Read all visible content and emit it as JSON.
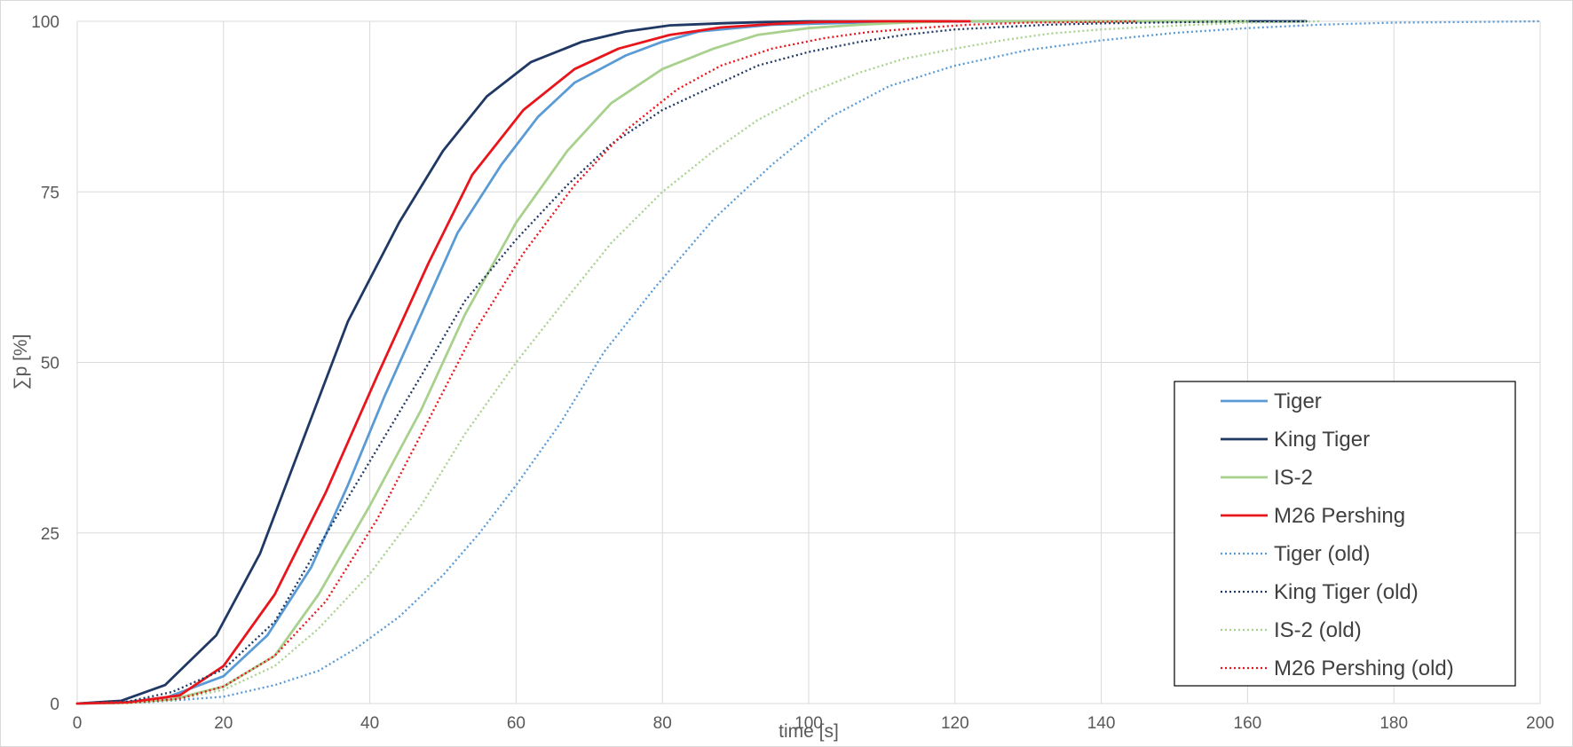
{
  "chart_data": {
    "type": "line",
    "title": "",
    "xlabel": "time [s]",
    "ylabel": "∑p [%]",
    "xlim": [
      0,
      200
    ],
    "ylim": [
      0,
      100
    ],
    "x_ticks": [
      0,
      20,
      40,
      60,
      80,
      100,
      120,
      140,
      160,
      180,
      200
    ],
    "y_ticks": [
      0,
      25,
      50,
      75,
      100
    ],
    "grid": true,
    "legend_position": "bottom-right",
    "series": [
      {
        "name": "Tiger",
        "color": "#5b9bd5",
        "style": "solid",
        "x": [
          0,
          6,
          12,
          15,
          20,
          26,
          32,
          37,
          42,
          47,
          52,
          58,
          63,
          68,
          75,
          80,
          85,
          95,
          110,
          125,
          140,
          150
        ],
        "y": [
          0,
          0.1,
          0.8,
          2,
          4,
          10,
          20,
          32,
          45,
          57,
          69,
          79,
          86,
          91,
          95,
          97,
          98.5,
          99.5,
          99.9,
          100,
          100,
          100
        ]
      },
      {
        "name": "King Tiger",
        "color": "#1f3864",
        "style": "solid",
        "x": [
          0,
          6,
          12,
          19,
          25,
          31,
          37,
          44,
          50,
          56,
          62,
          69,
          75,
          81,
          88,
          94,
          100,
          110,
          125,
          140,
          160,
          168
        ],
        "y": [
          0,
          0.4,
          2.7,
          10,
          22,
          39,
          56,
          70.5,
          81,
          89,
          94,
          97,
          98.5,
          99.4,
          99.7,
          99.9,
          100,
          100,
          100,
          100,
          100,
          100
        ]
      },
      {
        "name": "IS-2",
        "color": "#a9d18e",
        "style": "solid",
        "x": [
          0,
          7,
          13,
          20,
          27,
          33,
          40,
          47,
          53,
          60,
          67,
          73,
          80,
          87,
          93,
          100,
          107,
          113,
          120,
          130,
          140,
          160
        ],
        "y": [
          0,
          0.1,
          0.6,
          2.5,
          7,
          16,
          29,
          43,
          57,
          70.5,
          81,
          88,
          93,
          96,
          98,
          99,
          99.5,
          99.8,
          100,
          100,
          100,
          100
        ]
      },
      {
        "name": "M26 Pershing",
        "color": "#e8161c",
        "style": "solid",
        "x": [
          0,
          7,
          14,
          20,
          27,
          34,
          41,
          48,
          54,
          61,
          68,
          74,
          81,
          88,
          95,
          101,
          110,
          122
        ],
        "y": [
          0,
          0.2,
          1.2,
          5.5,
          16,
          31,
          48,
          64.5,
          77.5,
          87,
          93,
          96,
          98,
          99.1,
          99.6,
          99.9,
          100,
          100
        ]
      },
      {
        "name": "Tiger (old)",
        "color": "#5b9bd5",
        "style": "dotted",
        "x": [
          0,
          10,
          20,
          27,
          33,
          38,
          44,
          50,
          55,
          60,
          66,
          72,
          79,
          87,
          95,
          103,
          111,
          120,
          130,
          140,
          150,
          160,
          170,
          180,
          190,
          200
        ],
        "y": [
          0,
          0.2,
          1,
          2.7,
          4.8,
          8,
          12.7,
          18.8,
          25,
          32,
          41,
          51.5,
          61,
          71,
          79,
          86,
          90.5,
          93.5,
          95.8,
          97.2,
          98.3,
          99,
          99.5,
          99.8,
          99.9,
          100
        ]
      },
      {
        "name": "King Tiger (old)",
        "color": "#1f3864",
        "style": "dotted",
        "x": [
          0,
          7,
          13,
          20,
          27,
          33,
          40,
          47,
          53,
          60,
          67,
          73,
          80,
          87,
          93,
          100,
          107,
          113,
          120,
          127,
          133,
          140,
          147,
          153,
          160
        ],
        "y": [
          0,
          0.3,
          1.7,
          5,
          12,
          23,
          35.5,
          48,
          59,
          68,
          76,
          82,
          87,
          90.5,
          93.5,
          95.5,
          97,
          98,
          98.8,
          99.2,
          99.5,
          99.7,
          99.8,
          99.9,
          100
        ]
      },
      {
        "name": "IS-2 (old)",
        "color": "#a9d18e",
        "style": "dotted",
        "x": [
          0,
          7,
          13,
          20,
          27,
          33,
          40,
          47,
          53,
          60,
          67,
          73,
          80,
          87,
          93,
          100,
          107,
          113,
          120,
          127,
          133,
          140,
          147,
          153,
          160,
          170
        ],
        "y": [
          0,
          0.1,
          0.5,
          2,
          5.5,
          11,
          19,
          29,
          39.5,
          50,
          59.5,
          67.5,
          75,
          81,
          85.5,
          89.5,
          92.5,
          94.5,
          96,
          97.3,
          98.2,
          98.8,
          99.2,
          99.5,
          99.8,
          100
        ]
      },
      {
        "name": "M26 Pershing (old)",
        "color": "#e8161c",
        "style": "dotted",
        "x": [
          0,
          7,
          14,
          20,
          27,
          34,
          41,
          48,
          54,
          61,
          68,
          75,
          82,
          88,
          95,
          102,
          108,
          115,
          122,
          130,
          138,
          145
        ],
        "y": [
          0,
          0.1,
          0.7,
          2.5,
          7,
          15,
          27,
          41.5,
          54,
          66,
          76,
          84,
          90,
          93.5,
          96,
          97.5,
          98.4,
          99,
          99.5,
          99.8,
          99.9,
          100
        ]
      }
    ]
  }
}
